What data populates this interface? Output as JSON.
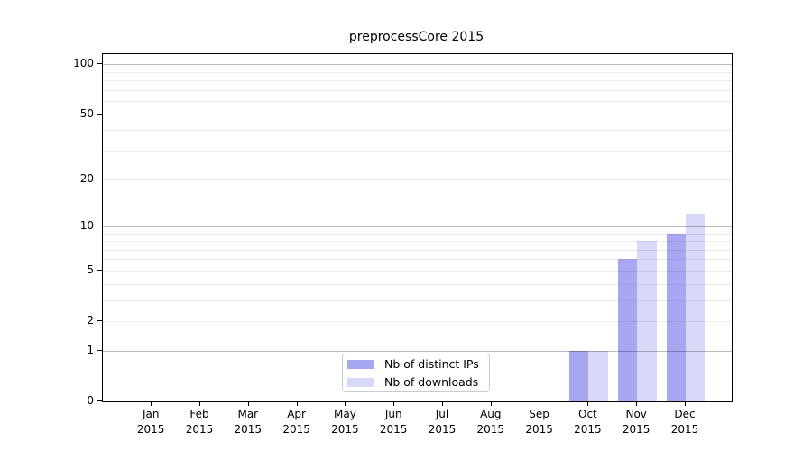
{
  "title": "preprocessCore 2015",
  "chart_data": {
    "type": "bar",
    "title": "preprocessCore 2015",
    "categories": [
      "Jan",
      "Feb",
      "Mar",
      "Apr",
      "May",
      "Jun",
      "Jul",
      "Aug",
      "Sep",
      "Oct",
      "Nov",
      "Dec"
    ],
    "x_year_label": "2015",
    "series": [
      {
        "name": "Nb of distinct IPs",
        "color": "#a8a8f2",
        "values": [
          0,
          0,
          0,
          0,
          0,
          0,
          0,
          0,
          0,
          1,
          6,
          9
        ]
      },
      {
        "name": "Nb of downloads",
        "color": "#d8d8f8",
        "values": [
          0,
          0,
          0,
          0,
          0,
          0,
          0,
          0,
          0,
          1,
          8,
          12
        ]
      }
    ],
    "y_scale": "log10(1+x)",
    "y_ticks": [
      0,
      1,
      2,
      5,
      10,
      20,
      50,
      100
    ],
    "y_gridlines_major": [
      1,
      10,
      100
    ],
    "y_gridlines_minor": [
      2,
      3,
      4,
      5,
      6,
      7,
      8,
      9,
      20,
      30,
      40,
      50,
      60,
      70,
      80,
      90
    ],
    "ylim": [
      0,
      115
    ],
    "xlabel": "",
    "ylabel": "",
    "legend_position": "lower center",
    "grid": "on",
    "colors": {
      "background": "#ffffff",
      "spine": "#000000",
      "grid_major": "#bcbcbc",
      "grid_minor": "#ececec",
      "legend_border": "#cccccc"
    }
  }
}
